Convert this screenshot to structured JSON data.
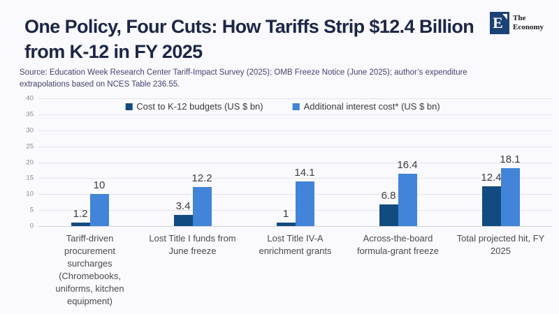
{
  "header": {
    "title": "One Policy, Four Cuts: How Tariffs Strip $12.4 Billion from K-12 in FY 2025",
    "source": "Source:  Education Week Research Center Tariff-Impact Survey (2025); OMB Freeze Notice (June 2025); author’s expenditure extrapolations based on NCES Table 236.55.",
    "logo": {
      "letter": "E",
      "brand_line1": "The",
      "brand_line2": "Economy"
    }
  },
  "colors": {
    "background": "#f9f9fe",
    "title_text": "#1c2646",
    "source_text": "#45436e",
    "series_dark_blue": "#124b7f",
    "series_light_blue": "#4284d7",
    "logo_navy": "#1c4176",
    "gridline": "#e4e4eb",
    "tick_text": "#8a8a8a",
    "value_label_text": "#3d3d3d",
    "category_text": "#4b4b4b"
  },
  "chart_data": {
    "type": "bar",
    "title": "One Policy, Four Cuts: How Tariffs Strip $12.4 Billion from K-12 in FY 2025",
    "categories": [
      "Tariff-driven procurement surcharges (Chromebooks, uniforms, kitchen equipment)",
      "Lost Title I funds from June freeze",
      "Lost Title IV-A enrichment grants",
      "Across-the-board formula-grant freeze",
      "Total projected hit, FY 2025"
    ],
    "series": [
      {
        "name": "Cost to K-12 budgets (US $ bn)",
        "color": "#124b7f",
        "values": [
          1.2,
          3.4,
          1,
          6.8,
          12.4
        ]
      },
      {
        "name": "Additional interest cost* (US $ bn)",
        "color": "#4284d7",
        "values": [
          10,
          12.2,
          14.1,
          16.4,
          18.1
        ]
      }
    ],
    "xlabel": "",
    "ylabel": "",
    "ylim": [
      0,
      40
    ],
    "yticks": [
      0,
      5,
      10,
      15,
      20,
      25,
      30,
      35,
      40
    ],
    "grid": true,
    "legend_position": "top-center",
    "value_labels_shown": true
  }
}
